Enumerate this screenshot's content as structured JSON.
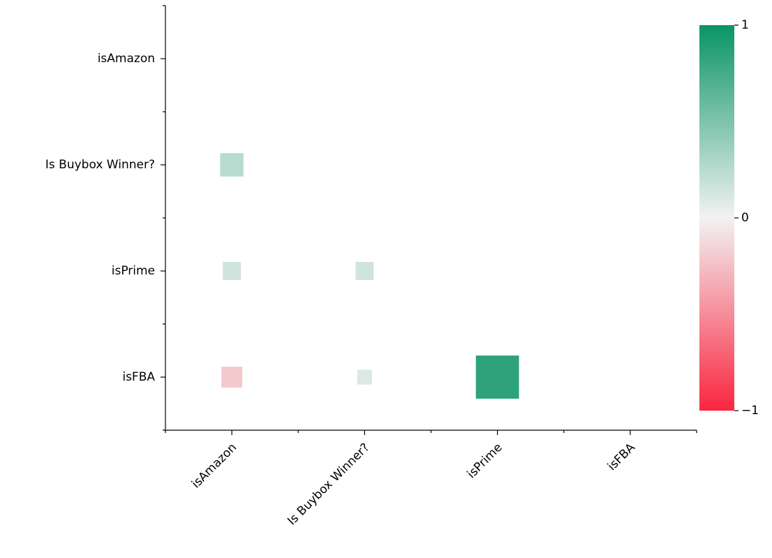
{
  "chart_data": {
    "type": "heatmap",
    "categories": [
      "isAmazon",
      "Is Buybox Winner?",
      "isPrime",
      "isFBA"
    ],
    "values": [
      [
        null,
        null,
        null,
        null
      ],
      [
        0.25,
        null,
        null,
        null
      ],
      [
        0.15,
        0.15,
        null,
        null
      ],
      [
        -0.2,
        0.1,
        0.85,
        null
      ]
    ],
    "colormap": [
      "#fa2640",
      "#f2f2f2",
      "#0a9466"
    ],
    "clim": [
      -1,
      1
    ],
    "cticks": [
      {
        "value": -1,
        "label": "−1"
      },
      0,
      1
    ]
  }
}
